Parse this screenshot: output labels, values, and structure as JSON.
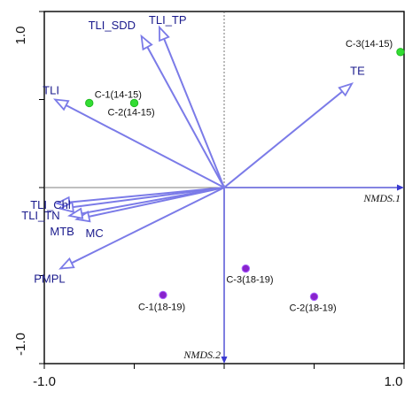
{
  "chart_data": {
    "type": "scatter",
    "subtype": "ordination-biplot",
    "xlim": [
      -1.0,
      1.0
    ],
    "ylim": [
      -1.0,
      1.0
    ],
    "x_ticks": [
      "-1.0",
      "1.0"
    ],
    "y_ticks": [
      "1.0",
      "-1.0"
    ],
    "axis1_label": "NMDS.1",
    "axis2_label": "NMDS.2",
    "colors": {
      "frame": "#000000",
      "vector": "#7b7be8",
      "axis": "#3a3ad0",
      "vector_label": "#1a1a8c",
      "group_14_15": "#33dd33",
      "group_18_19": "#8822cc"
    },
    "vectors": [
      {
        "label": "TLI_TP",
        "x": -0.36,
        "y": 0.91
      },
      {
        "label": "TLI_SDD",
        "x": -0.46,
        "y": 0.86
      },
      {
        "label": "TLI",
        "x": -0.94,
        "y": 0.5
      },
      {
        "label": "TE",
        "x": 0.71,
        "y": 0.59
      },
      {
        "label": "TLI_Chl",
        "x": -0.93,
        "y": -0.09
      },
      {
        "label": "TLI_TN",
        "x": -0.91,
        "y": -0.12
      },
      {
        "label": "MC",
        "x": -0.82,
        "y": -0.18
      },
      {
        "label": "MTB",
        "x": -0.86,
        "y": -0.16
      },
      {
        "label": "PMPL",
        "x": -0.91,
        "y": -0.46
      }
    ],
    "points": [
      {
        "label": "C-1(14-15)",
        "x": -0.75,
        "y": 0.48,
        "group": "14-15"
      },
      {
        "label": "C-2(14-15)",
        "x": -0.5,
        "y": 0.48,
        "group": "14-15"
      },
      {
        "label": "C-3(14-15)",
        "x": 0.98,
        "y": 0.77,
        "group": "14-15"
      },
      {
        "label": "C-1(18-19)",
        "x": -0.34,
        "y": -0.61,
        "group": "18-19"
      },
      {
        "label": "C-2(18-19)",
        "x": 0.5,
        "y": -0.62,
        "group": "18-19"
      },
      {
        "label": "C-3(18-19)",
        "x": 0.12,
        "y": -0.46,
        "group": "18-19"
      }
    ]
  }
}
